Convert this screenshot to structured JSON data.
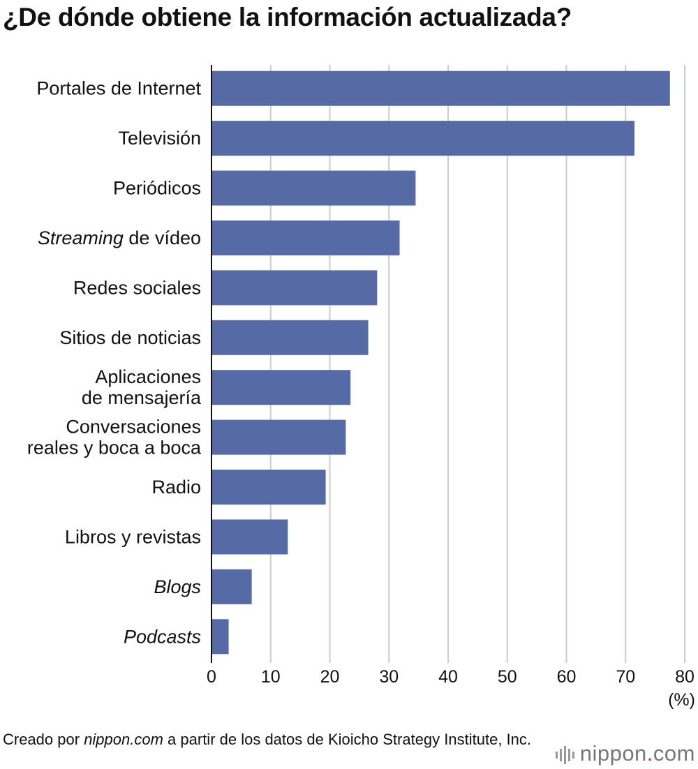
{
  "title": "¿De dónde obtiene la información actualizada?",
  "footer": {
    "prefix": "Creado por ",
    "source_site": "nippon.com",
    "suffix": " a partir de los datos de Kioicho Strategy Institute, Inc."
  },
  "logo": {
    "main": "nippon",
    "dot": ".",
    "tld": "com"
  },
  "chart_data": {
    "type": "bar",
    "orientation": "horizontal",
    "categories": [
      [
        {
          "text": "Portales de Internet"
        }
      ],
      [
        {
          "text": "Televisión"
        }
      ],
      [
        {
          "text": "Periódicos"
        }
      ],
      [
        {
          "text": "Streaming",
          "italic": true
        },
        {
          "text": " de vídeo"
        }
      ],
      [
        {
          "text": "Redes sociales"
        }
      ],
      [
        {
          "text": "Sitios de noticias"
        }
      ],
      [
        {
          "text": "Aplicaciones"
        },
        {
          "text": "de mensajería",
          "newline": true
        }
      ],
      [
        {
          "text": "Conversaciones"
        },
        {
          "text": "reales y boca a boca",
          "newline": true
        }
      ],
      [
        {
          "text": "Radio"
        }
      ],
      [
        {
          "text": "Libros y revistas"
        }
      ],
      [
        {
          "text": "Blogs",
          "italic": true
        }
      ],
      [
        {
          "text": "Podcasts",
          "italic": true
        }
      ]
    ],
    "values": [
      77.5,
      71.5,
      34.5,
      31.8,
      28,
      26.5,
      23.5,
      22.7,
      19.3,
      12.9,
      6.8,
      2.9
    ],
    "xlim": [
      0,
      80
    ],
    "xticks": [
      0,
      10,
      20,
      30,
      40,
      50,
      60,
      70,
      80
    ],
    "xunit": "(%)",
    "grid": true,
    "bar_color": "#566aa5",
    "grid_color": "#cccccc"
  }
}
